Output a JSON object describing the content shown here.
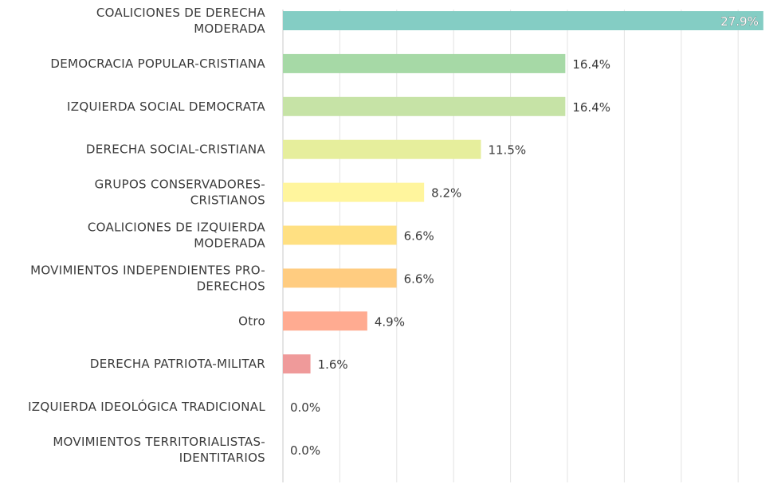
{
  "chart_data": {
    "type": "bar",
    "orientation": "horizontal",
    "categories": [
      [
        "COALICIONES DE DERECHA",
        "MODERADA"
      ],
      [
        "DEMOCRACIA POPULAR-CRISTIANA"
      ],
      [
        "IZQUIERDA SOCIAL DEMOCRATA"
      ],
      [
        "DERECHA SOCIAL-CRISTIANA"
      ],
      [
        "GRUPOS CONSERVADORES-",
        "CRISTIANOS"
      ],
      [
        "COALICIONES DE IZQUIERDA",
        "MODERADA"
      ],
      [
        "MOVIMIENTOS INDEPENDIENTES PRO-",
        "DERECHOS"
      ],
      [
        "Otro"
      ],
      [
        "DERECHA PATRIOTA-MILITAR"
      ],
      [
        "IZQUIERDA IDEOLÓGICA TRADICIONAL"
      ],
      [
        "MOVIMIENTOS TERRITORIALISTAS-",
        "IDENTITARIOS"
      ]
    ],
    "values": [
      27.9,
      16.4,
      16.4,
      11.5,
      8.2,
      6.6,
      6.6,
      4.9,
      1.6,
      0.0,
      0.0
    ],
    "value_labels": [
      "27.9%",
      "16.4%",
      "16.4%",
      "11.5%",
      "8.2%",
      "6.6%",
      "6.6%",
      "4.9%",
      "1.6%",
      "0.0%",
      "0.0%"
    ],
    "colors": [
      "#84cdc4",
      "#a6d9a6",
      "#c6e3a6",
      "#e6ee9c",
      "#fff59d",
      "#ffe082",
      "#ffcc80",
      "#ffab91",
      "#ef9a9a",
      "#ef9a9a",
      "#ef9a9a"
    ],
    "xlim": [
      0,
      28
    ],
    "gridlines": true,
    "legend": "none",
    "title": "",
    "xlabel": "",
    "ylabel": ""
  }
}
